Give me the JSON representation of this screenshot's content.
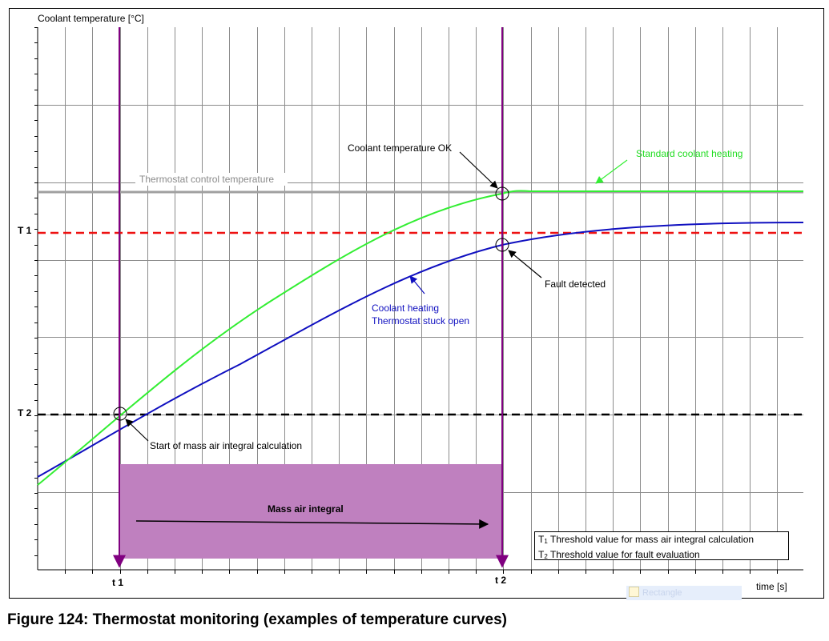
{
  "figure": {
    "caption": "Figure 124: Thermostat monitoring (examples of temperature curves)",
    "y_axis_label": "Coolant temperature [°C]",
    "x_axis_label": "time [s]"
  },
  "axis_marks": {
    "t1_label": "t 1",
    "t2_label": "t 2",
    "T1_label": "T 1",
    "T2_label": "T 2"
  },
  "annotations": {
    "thermostat_control": "Thermostat control temperature",
    "coolant_ok": "Coolant temperature OK",
    "standard_heating": "Standard coolant heating",
    "fault_detected": "Fault detected",
    "stuck_open_line1": "Coolant heating",
    "stuck_open_line2": "Thermostat stuck open",
    "start_integral": "Start of mass air integral calculation",
    "mass_air_integral": "Mass air integral"
  },
  "legend": {
    "t1_symbol": "T",
    "t1_sub": "1",
    "t1_text": "Threshold value for mass air integral calculation",
    "t2_symbol": "T",
    "t2_sub": "2",
    "t2_text": "Threshold value for fault evaluation"
  },
  "watermark": {
    "text": "Rectangle"
  },
  "colors": {
    "green_curve": "#33ee33",
    "blue_curve": "#1010c0",
    "t1_line": "#ee1111",
    "t2_line": "#000000",
    "thermostat_line": "#a0a0a0",
    "marker_line": "#800080",
    "integral_area": "#bf80bf"
  }
}
